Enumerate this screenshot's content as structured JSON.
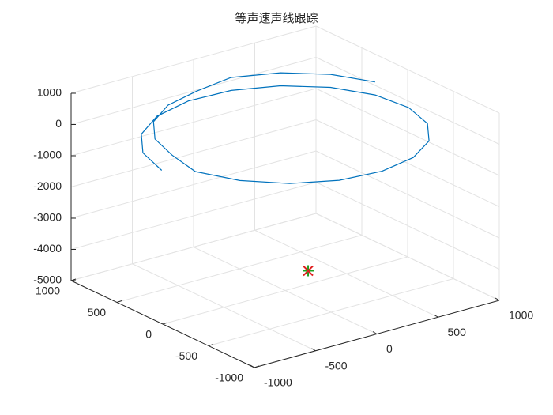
{
  "chart_data": {
    "type": "line3d",
    "title": "等声速声线跟踪",
    "x": [
      -946,
      -861,
      -672,
      -402,
      -83,
      246,
      545,
      778,
      918,
      946,
      861,
      672,
      402,
      83,
      -246,
      -545,
      -778,
      -918,
      -867,
      -788,
      -615,
      -368,
      -76,
      246,
      545,
      778,
      918
    ],
    "y": [
      83,
      402,
      672,
      861,
      946,
      918,
      778,
      545,
      246,
      -83,
      -402,
      -672,
      -861,
      -946,
      -918,
      -778,
      -545,
      -246,
      76,
      368,
      615,
      788,
      867,
      918,
      778,
      545,
      246
    ],
    "z": [
      -250,
      -227,
      -204,
      -181,
      -158,
      -135,
      -112,
      -89,
      -66,
      -43,
      -20,
      3,
      26,
      49,
      72,
      95,
      118,
      141,
      164,
      187,
      210,
      233,
      256,
      279,
      302,
      325,
      348
    ],
    "color": "#0072bd",
    "markers": [
      {
        "x": 334,
        "y": 196,
        "z": -5000,
        "color": "#20a020",
        "symbol": "plus"
      },
      {
        "x": 334,
        "y": 196,
        "z": -5000,
        "color": "#e02020",
        "symbol": "x"
      }
    ],
    "xlim": [
      -1000,
      1000
    ],
    "xticks": [
      -1000,
      -500,
      0,
      500,
      1000
    ],
    "ylim": [
      -1000,
      1000
    ],
    "yticks": [
      -1000,
      -500,
      0,
      500,
      1000
    ],
    "zlim": [
      -5000,
      1000
    ],
    "zticks": [
      -5000,
      -4000,
      -3000,
      -2000,
      -1000,
      0,
      1000
    ],
    "grid": true
  }
}
